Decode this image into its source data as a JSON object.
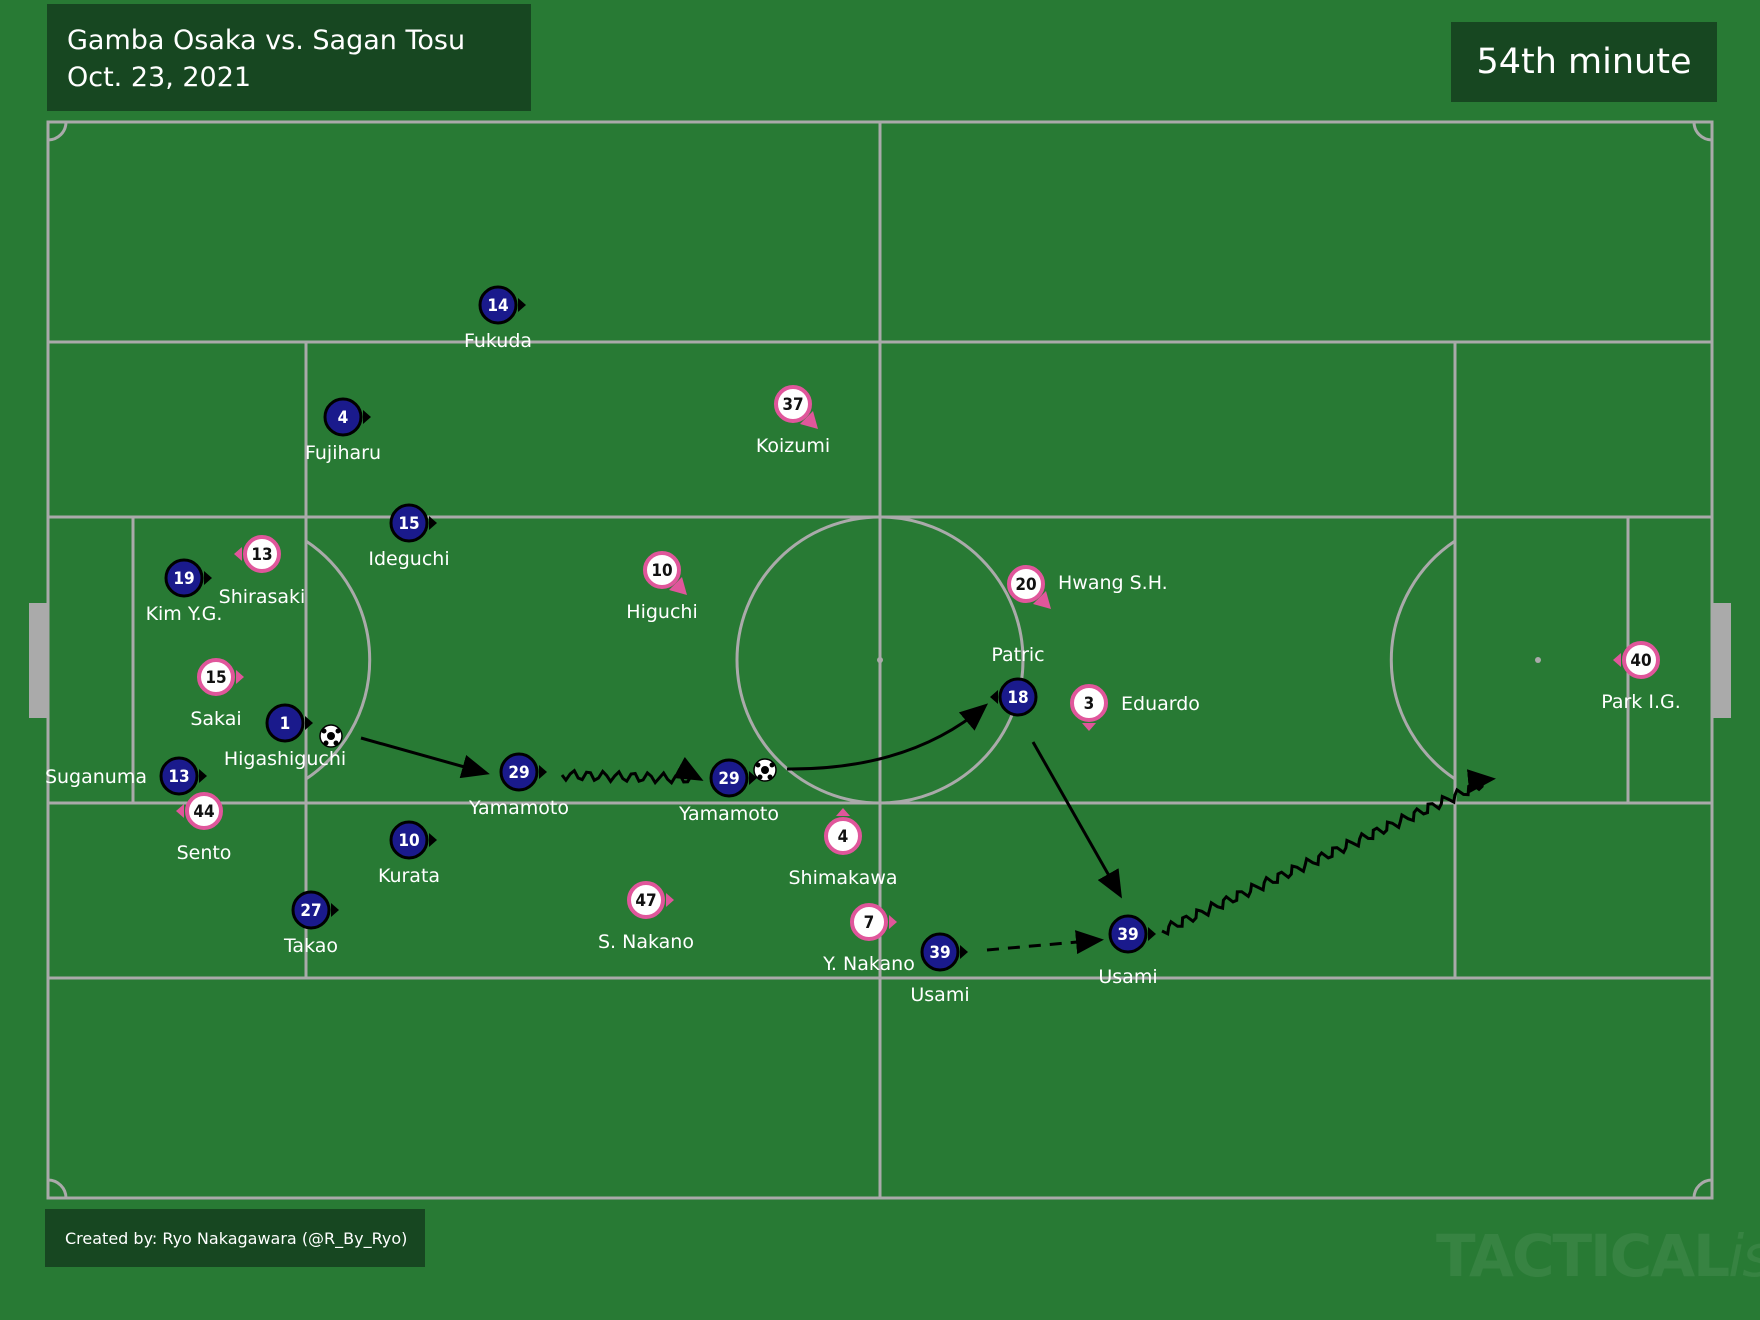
{
  "header": {
    "match": "Gamba Osaka vs. Sagan Tosu",
    "date": "Oct. 23, 2021"
  },
  "minute_label": "54th minute",
  "credit": "Created by: Ryo Nakagawara (@R_By_Ryo)",
  "watermark": {
    "bold": "TACTICAL",
    "italic": "ista"
  },
  "colors": {
    "pitch": "#287a34",
    "lines": "#aaaaaa",
    "box_bg": "#174721",
    "gamba_fill": "#1a1a8c",
    "gamba_outline": "#000000",
    "tosu_fill": "#ffffff",
    "tosu_outline": "#e0569b"
  },
  "teams": {
    "gamba": [
      {
        "num": "14",
        "name": "Fukuda"
      },
      {
        "num": "4",
        "name": "Fujiharu"
      },
      {
        "num": "15",
        "name": "Ideguchi"
      },
      {
        "num": "19",
        "name": "Kim Y.G."
      },
      {
        "num": "1",
        "name": "Higashiguchi"
      },
      {
        "num": "13",
        "name": "Suganuma"
      },
      {
        "num": "10",
        "name": "Kurata"
      },
      {
        "num": "27",
        "name": "Takao"
      },
      {
        "num": "29",
        "name": "Yamamoto"
      },
      {
        "num": "29",
        "name": "Yamamoto"
      },
      {
        "num": "18",
        "name": "Patric"
      },
      {
        "num": "39",
        "name": "Usami"
      },
      {
        "num": "39",
        "name": "Usami"
      }
    ],
    "tosu": [
      {
        "num": "37",
        "name": "Koizumi"
      },
      {
        "num": "13",
        "name": "Shirasaki"
      },
      {
        "num": "10",
        "name": "Higuchi"
      },
      {
        "num": "15",
        "name": "Sakai"
      },
      {
        "num": "44",
        "name": "Sento"
      },
      {
        "num": "47",
        "name": "S. Nakano"
      },
      {
        "num": "4",
        "name": "Shimakawa"
      },
      {
        "num": "7",
        "name": "Y. Nakano"
      },
      {
        "num": "20",
        "name": "Hwang S.H."
      },
      {
        "num": "3",
        "name": "Eduardo"
      },
      {
        "num": "40",
        "name": "Park I.G."
      }
    ]
  },
  "actions": [
    {
      "type": "pass",
      "from": "Higashiguchi",
      "to": "Yamamoto"
    },
    {
      "type": "dribble",
      "player": "Yamamoto"
    },
    {
      "type": "pass",
      "from": "Yamamoto",
      "to": "Patric"
    },
    {
      "type": "run",
      "player": "Usami"
    },
    {
      "type": "pass",
      "from": "Patric",
      "to": "Usami"
    },
    {
      "type": "dribble",
      "player": "Usami"
    }
  ]
}
